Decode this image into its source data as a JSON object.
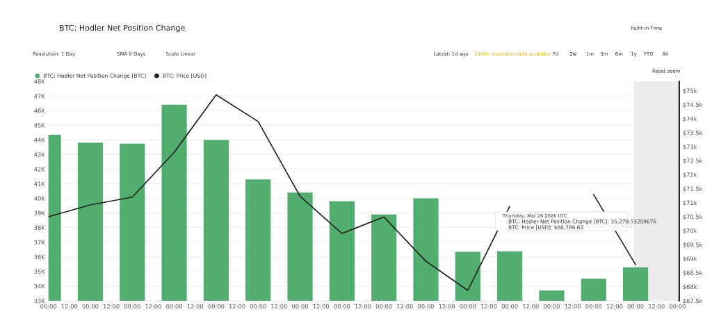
{
  "chart_data": {
    "type": "bar",
    "title": "BTC: Hodler Net Position Change",
    "x": [
      "2026-03-12T00:00",
      "2026-03-13T00:00",
      "2026-03-14T00:00",
      "2026-03-15T00:00",
      "2026-03-16T00:00",
      "2026-03-17T00:00",
      "2026-03-18T00:00",
      "2026-03-19T00:00",
      "2026-03-20T00:00",
      "2026-03-21T00:00",
      "2026-03-22T00:00",
      "2026-03-23T00:00",
      "2026-03-24T00:00",
      "2026-03-25T00:00",
      "2026-03-26T00:00"
    ],
    "series": [
      {
        "name": "BTC: Hodler Net Position Change [BTC]",
        "color": "#52ae6e",
        "values": [
          44350,
          43800,
          43740,
          46400,
          44000,
          41300,
          40400,
          39800,
          38900,
          40000,
          36350,
          36370,
          33700,
          34500,
          35280
        ]
      },
      {
        "name": "BTC: Price [USD]",
        "type": "line",
        "axis": "y2",
        "color": "#222222",
        "values": [
          70500,
          70920,
          71200,
          72800,
          74850,
          73900,
          71230,
          69900,
          70490,
          68910,
          67870,
          70870,
          null,
          71290,
          68790
        ]
      }
    ],
    "xlim": [
      "2026-03-12T00:00",
      "2026-03-27T01:00"
    ],
    "xticks": [
      {
        "value": "2026-03-12T00:00",
        "label": "00:00"
      },
      {
        "value": "2026-03-12T12:00",
        "label": "12:00"
      },
      {
        "value": "2026-03-13T00:00",
        "label": "00:00"
      },
      {
        "value": "2026-03-13T12:00",
        "label": "12:00"
      },
      {
        "value": "2026-03-14T00:00",
        "label": "00:00"
      },
      {
        "value": "2026-03-14T12:00",
        "label": "12:00"
      },
      {
        "value": "2026-03-15T00:00",
        "label": "00:00"
      },
      {
        "value": "2026-03-15T12:00",
        "label": "12:00"
      },
      {
        "value": "2026-03-16T00:00",
        "label": "00:00"
      },
      {
        "value": "2026-03-16T12:00",
        "label": "12:00"
      },
      {
        "value": "2026-03-17T00:00",
        "label": "00:00"
      },
      {
        "value": "2026-03-17T12:00",
        "label": "12:00"
      },
      {
        "value": "2026-03-18T00:00",
        "label": "00:00"
      },
      {
        "value": "2026-03-18T12:00",
        "label": "12:00"
      },
      {
        "value": "2026-03-19T00:00",
        "label": "00:00"
      },
      {
        "value": "2026-03-19T12:00",
        "label": "12:00"
      },
      {
        "value": "2026-03-20T00:00",
        "label": "00:00"
      },
      {
        "value": "2026-03-20T12:00",
        "label": "12:00"
      },
      {
        "value": "2026-03-21T00:00",
        "label": "00:00"
      },
      {
        "value": "2026-03-21T12:00",
        "label": "12:00"
      },
      {
        "value": "2026-03-22T00:00",
        "label": "00:00"
      },
      {
        "value": "2026-03-22T12:00",
        "label": "12:00"
      },
      {
        "value": "2026-03-23T00:00",
        "label": "00:00"
      },
      {
        "value": "2026-03-23T12:00",
        "label": "12:00"
      },
      {
        "value": "2026-03-24T00:00",
        "label": "00:00"
      },
      {
        "value": "2026-03-24T12:00",
        "label": "12:00"
      },
      {
        "value": "2026-03-25T00:00",
        "label": "00:00"
      },
      {
        "value": "2026-03-25T12:00",
        "label": "12:00"
      },
      {
        "value": "2026-03-26T00:00",
        "label": "00:00"
      },
      {
        "value": "2026-03-26T12:00",
        "label": "12:00"
      },
      {
        "value": "2026-03-27T00:00",
        "label": "00:00"
      }
    ],
    "ylim": [
      33000,
      48000
    ],
    "yticks": [
      {
        "value": 33000,
        "label": "33K"
      },
      {
        "value": 34000,
        "label": "34K"
      },
      {
        "value": 35000,
        "label": "35K"
      },
      {
        "value": 36000,
        "label": "36K"
      },
      {
        "value": 37000,
        "label": "37K"
      },
      {
        "value": 38000,
        "label": "38K"
      },
      {
        "value": 39000,
        "label": "39K"
      },
      {
        "value": 40000,
        "label": "40K"
      },
      {
        "value": 41000,
        "label": "41K"
      },
      {
        "value": 42000,
        "label": "42K"
      },
      {
        "value": 43000,
        "label": "43K"
      },
      {
        "value": 44000,
        "label": "44K"
      },
      {
        "value": 45000,
        "label": "45K"
      },
      {
        "value": 46000,
        "label": "46K"
      },
      {
        "value": 47000,
        "label": "47K"
      },
      {
        "value": 48000,
        "label": "48K"
      }
    ],
    "y2lim": [
      67500,
      75330
    ],
    "y2ticks": [
      {
        "value": 67500,
        "label": "$67.5k"
      },
      {
        "value": 68000,
        "label": "$68k"
      },
      {
        "value": 68500,
        "label": "$68.5k"
      },
      {
        "value": 69000,
        "label": "$69k"
      },
      {
        "value": 69500,
        "label": "$69.5k"
      },
      {
        "value": 70000,
        "label": "$70k"
      },
      {
        "value": 70500,
        "label": "$70.5k"
      },
      {
        "value": 71000,
        "label": "$71k"
      },
      {
        "value": 71500,
        "label": "$71.5k"
      },
      {
        "value": 72000,
        "label": "$72k"
      },
      {
        "value": 72500,
        "label": "$72.5k"
      },
      {
        "value": 73000,
        "label": "$73k"
      },
      {
        "value": 73500,
        "label": "$73.5k"
      },
      {
        "value": 74000,
        "label": "$74k"
      },
      {
        "value": 74500,
        "label": "$74.5k"
      },
      {
        "value": 75000,
        "label": "$75k"
      }
    ],
    "bands": [
      {
        "axis": "x",
        "from": "2026-03-25T23:00",
        "to": "2026-03-27T01:00",
        "color": "#ececec"
      }
    ],
    "grid": "y",
    "legend": "top left",
    "annotations": [
      "Resolution: 1 Day",
      "SMA 0 Days",
      "Scale Linear",
      "Latest: 1d ago",
      "10min resolution data available",
      "7d",
      "2w",
      "1m",
      "3m",
      "6m",
      "1y",
      "YTD",
      "All",
      "Reset zoom",
      "Point-in-Time",
      "Thursday, Mar 26 2026 UTC",
      "BTC: Hodler Net Position Change [BTC]: 35,278.53209676",
      "BTC: Price [USD]: $68,786.63"
    ]
  }
}
